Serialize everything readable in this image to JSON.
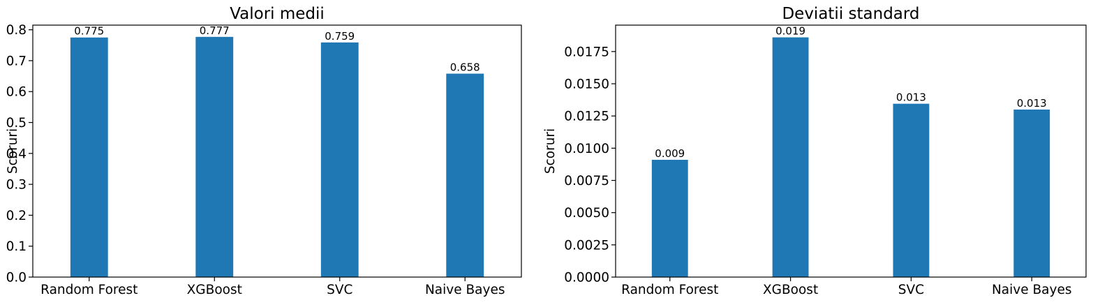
{
  "chart_data": [
    {
      "type": "bar",
      "title": "Valori medii",
      "xlabel": "",
      "ylabel": "Scoruri",
      "categories": [
        "Random Forest",
        "XGBoost",
        "SVC",
        "Naive Bayes"
      ],
      "values": [
        0.775,
        0.777,
        0.759,
        0.658
      ],
      "data_labels": [
        "0.775",
        "0.777",
        "0.759",
        "0.658"
      ],
      "ylim": [
        0,
        0.815
      ],
      "yticks": [
        0.0,
        0.1,
        0.2,
        0.3,
        0.4,
        0.5,
        0.6,
        0.7,
        0.8
      ],
      "ytick_labels": [
        "0.0",
        "0.1",
        "0.2",
        "0.3",
        "0.4",
        "0.5",
        "0.6",
        "0.7",
        "0.8"
      ],
      "grid": false,
      "color": "#1f77b4"
    },
    {
      "type": "bar",
      "title": "Deviatii standard",
      "xlabel": "",
      "ylabel": "Scoruri",
      "categories": [
        "Random Forest",
        "XGBoost",
        "SVC",
        "Naive Bayes"
      ],
      "values": [
        0.0091,
        0.0186,
        0.01345,
        0.013
      ],
      "data_labels": [
        "0.009",
        "0.019",
        "0.013",
        "0.013"
      ],
      "ylim": [
        0,
        0.01955
      ],
      "yticks": [
        0.0,
        0.0025,
        0.005,
        0.0075,
        0.01,
        0.0125,
        0.015,
        0.0175
      ],
      "ytick_labels": [
        "0.0000",
        "0.0025",
        "0.0050",
        "0.0075",
        "0.0100",
        "0.0125",
        "0.0150",
        "0.0175"
      ],
      "grid": false,
      "color": "#1f77b4"
    }
  ]
}
